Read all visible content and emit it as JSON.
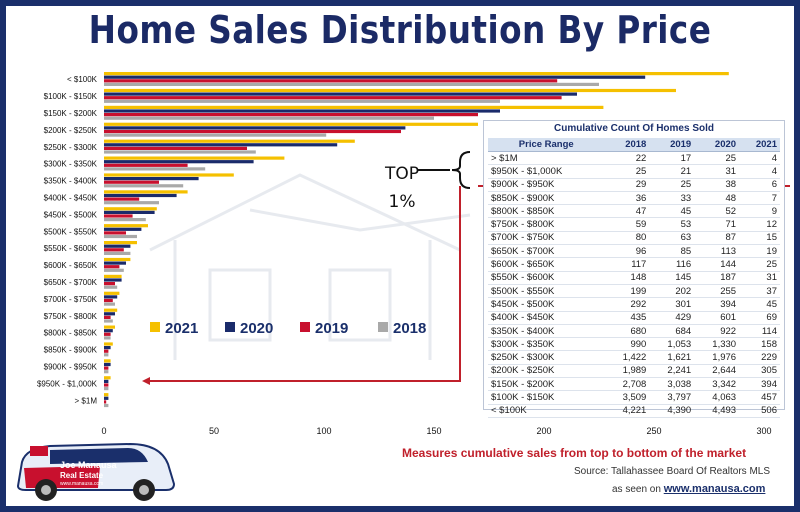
{
  "title": "Home Sales Distribution By Price",
  "chart_data": {
    "type": "bar",
    "orientation": "horizontal",
    "categories": [
      "< $100K",
      "$100K - $150K",
      "$150K - $200K",
      "$200K - $250K",
      "$250K - $300K",
      "$300K - $350K",
      "$350K - $400K",
      "$400K - $450K",
      "$450K - $500K",
      "$500K - $550K",
      "$550K - $600K",
      "$600K - $650K",
      "$650K - $700K",
      "$700K - $750K",
      "$750K - $800K",
      "$800K - $850K",
      "$850K - $900K",
      "$900K - $950K",
      "$950K - $1,000K",
      "> $1M"
    ],
    "series": [
      {
        "name": "2021",
        "color": "#f5c000",
        "values": [
          284,
          260,
          227,
          170,
          114,
          82,
          59,
          38,
          24,
          20,
          15,
          12,
          8,
          7,
          6,
          5,
          4,
          3,
          3,
          2
        ]
      },
      {
        "name": "2020",
        "color": "#1a2b6b",
        "values": [
          246,
          215,
          180,
          137,
          106,
          68,
          43,
          33,
          23,
          17,
          12,
          10,
          8,
          6,
          5,
          4,
          3,
          3,
          2,
          2
        ]
      },
      {
        "name": "2019",
        "color": "#c8102e",
        "values": [
          206,
          208,
          170,
          135,
          65,
          38,
          25,
          16,
          13,
          10,
          9,
          7,
          5,
          4,
          3,
          3,
          2,
          2,
          2,
          1
        ]
      },
      {
        "name": "2018",
        "color": "#a9a9a9",
        "values": [
          225,
          180,
          150,
          101,
          69,
          46,
          36,
          25,
          19,
          15,
          12,
          9,
          6,
          5,
          4,
          3,
          2,
          2,
          2,
          2
        ]
      }
    ],
    "xlim": [
      0,
      300
    ],
    "xticks": [
      0,
      50,
      100,
      150,
      200,
      250,
      300
    ],
    "legend_position": "center-left",
    "grid": false
  },
  "table": {
    "title": "Cumulative Count Of Homes Sold",
    "headers": [
      "Price Range",
      "2018",
      "2019",
      "2020",
      "2021"
    ],
    "rows": [
      [
        "> $1M",
        "22",
        "17",
        "25",
        "4"
      ],
      [
        "$950K - $1,000K",
        "25",
        "21",
        "31",
        "4"
      ],
      [
        "$900K - $950K",
        "29",
        "25",
        "38",
        "6"
      ],
      [
        "$850K - $900K",
        "36",
        "33",
        "48",
        "7"
      ],
      [
        "$800K - $850K",
        "47",
        "45",
        "52",
        "9"
      ],
      [
        "$750K - $800K",
        "59",
        "53",
        "71",
        "12"
      ],
      [
        "$700K - $750K",
        "80",
        "63",
        "87",
        "15"
      ],
      [
        "$650K - $700K",
        "96",
        "85",
        "113",
        "19"
      ],
      [
        "$600K - $650K",
        "117",
        "116",
        "144",
        "25"
      ],
      [
        "$550K - $600K",
        "148",
        "145",
        "187",
        "31"
      ],
      [
        "$500K - $550K",
        "199",
        "202",
        "255",
        "37"
      ],
      [
        "$450K - $500K",
        "292",
        "301",
        "394",
        "45"
      ],
      [
        "$400K - $450K",
        "435",
        "429",
        "601",
        "69"
      ],
      [
        "$350K - $400K",
        "680",
        "684",
        "922",
        "114"
      ],
      [
        "$300K - $350K",
        "990",
        "1,053",
        "1,330",
        "158"
      ],
      [
        "$250K - $300K",
        "1,422",
        "1,621",
        "1,976",
        "229"
      ],
      [
        "$200K - $250K",
        "1,989",
        "2,241",
        "2,644",
        "305"
      ],
      [
        "$150K - $200K",
        "2,708",
        "3,038",
        "3,342",
        "394"
      ],
      [
        "$100K - $150K",
        "3,509",
        "3,797",
        "4,063",
        "457"
      ],
      [
        "< $100K",
        "4,221",
        "4,390",
        "4,493",
        "506"
      ]
    ]
  },
  "callout": {
    "line1": "TOP",
    "line2": "1%"
  },
  "footer": {
    "main": "Measures cumulative sales from top to bottom of the market",
    "source": "Source: Tallahassee Board Of Realtors MLS",
    "seen_prefix": "as seen on",
    "seen_site": "www.manausa.com"
  },
  "car": {
    "brand1": "Joe Manausa",
    "brand2": "Real Estate",
    "site": "www.manausa.com"
  }
}
